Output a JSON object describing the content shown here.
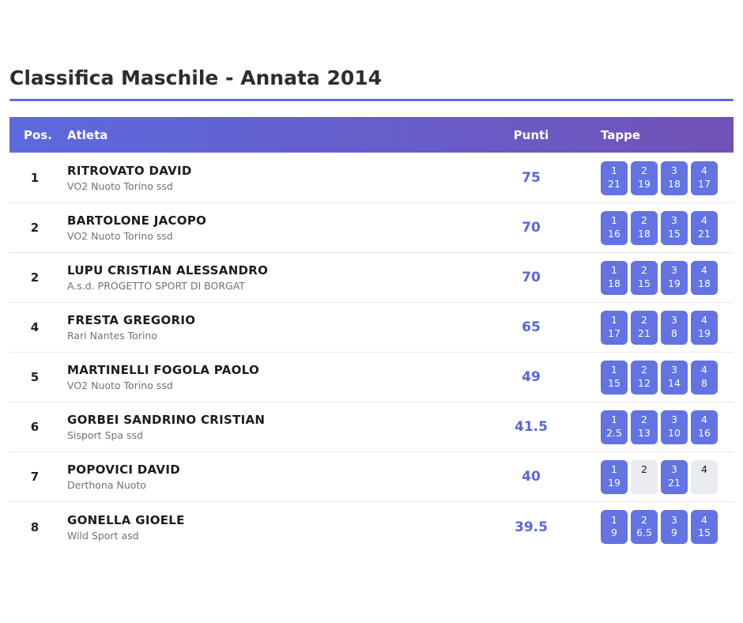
{
  "page": {
    "title": "Classifica Maschile - Annata 2014"
  },
  "table": {
    "headers": {
      "pos": "Pos.",
      "atleta": "Atleta",
      "punti": "Punti",
      "tappe": "Tappe"
    },
    "rows": [
      {
        "pos": "1",
        "name": "RITROVATO DAVID",
        "club": "VO2 Nuoto Torino ssd",
        "punti": "75",
        "tappe": [
          {
            "stage": "1",
            "points": "21"
          },
          {
            "stage": "2",
            "points": "19"
          },
          {
            "stage": "3",
            "points": "18"
          },
          {
            "stage": "4",
            "points": "17"
          }
        ]
      },
      {
        "pos": "2",
        "name": "BARTOLONE JACOPO",
        "club": "VO2 Nuoto Torino ssd",
        "punti": "70",
        "tappe": [
          {
            "stage": "1",
            "points": "16"
          },
          {
            "stage": "2",
            "points": "18"
          },
          {
            "stage": "3",
            "points": "15"
          },
          {
            "stage": "4",
            "points": "21"
          }
        ]
      },
      {
        "pos": "2",
        "name": "LUPU CRISTIAN ALESSANDRO",
        "club": "A.s.d. PROGETTO SPORT DI BORGAT",
        "punti": "70",
        "tappe": [
          {
            "stage": "1",
            "points": "18"
          },
          {
            "stage": "2",
            "points": "15"
          },
          {
            "stage": "3",
            "points": "19"
          },
          {
            "stage": "4",
            "points": "18"
          }
        ]
      },
      {
        "pos": "4",
        "name": "FRESTA GREGORIO",
        "club": "Rari Nantes Torino",
        "punti": "65",
        "tappe": [
          {
            "stage": "1",
            "points": "17"
          },
          {
            "stage": "2",
            "points": "21"
          },
          {
            "stage": "3",
            "points": "8"
          },
          {
            "stage": "4",
            "points": "19"
          }
        ]
      },
      {
        "pos": "5",
        "name": "MARTINELLI FOGOLA PAOLO",
        "club": "VO2 Nuoto Torino ssd",
        "punti": "49",
        "tappe": [
          {
            "stage": "1",
            "points": "15"
          },
          {
            "stage": "2",
            "points": "12"
          },
          {
            "stage": "3",
            "points": "14"
          },
          {
            "stage": "4",
            "points": "8"
          }
        ]
      },
      {
        "pos": "6",
        "name": "GORBEI SANDRINO CRISTIAN",
        "club": "Sisport Spa ssd",
        "punti": "41.5",
        "tappe": [
          {
            "stage": "1",
            "points": "2.5"
          },
          {
            "stage": "2",
            "points": "13"
          },
          {
            "stage": "3",
            "points": "10"
          },
          {
            "stage": "4",
            "points": "16"
          }
        ]
      },
      {
        "pos": "7",
        "name": "POPOVICI DAVID",
        "club": "Derthona Nuoto",
        "punti": "40",
        "tappe": [
          {
            "stage": "1",
            "points": "19"
          },
          {
            "stage": "2",
            "points": ""
          },
          {
            "stage": "3",
            "points": "21"
          },
          {
            "stage": "4",
            "points": ""
          }
        ]
      },
      {
        "pos": "8",
        "name": "GONELLA GIOELE",
        "club": "Wild Sport asd",
        "punti": "39.5",
        "tappe": [
          {
            "stage": "1",
            "points": "9"
          },
          {
            "stage": "2",
            "points": "6.5"
          },
          {
            "stage": "3",
            "points": "9"
          },
          {
            "stage": "4",
            "points": "15"
          }
        ]
      }
    ]
  },
  "colors": {
    "header_gradient_start": "#5c6ade",
    "header_gradient_end": "#7152b7",
    "badge_active": "#6373e1",
    "badge_inactive": "#e9ebef",
    "points_text": "#5767dc",
    "title_rule": "#5b6ce0"
  }
}
